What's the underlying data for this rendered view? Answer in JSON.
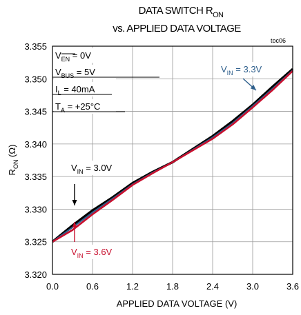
{
  "chart_data": {
    "type": "line",
    "title_line1_main": "DATA SWITCH R",
    "title_line1_sub": "ON",
    "title_line2": "vs. APPLIED DATA VOLTAGE",
    "tag": "toc06",
    "xlabel": "APPLIED DATA VOLTAGE (V)",
    "ylabel_main": "R",
    "ylabel_sub": "ON",
    "ylabel_unit": " (Ω)",
    "xlim": [
      0,
      3.6
    ],
    "ylim": [
      3.32,
      3.355
    ],
    "x_ticks": [
      "0.0",
      "0.6",
      "1.2",
      "1.8",
      "2.4",
      "3.0",
      "3.6"
    ],
    "y_ticks": [
      "3.320",
      "3.325",
      "3.330",
      "3.335",
      "3.340",
      "3.345",
      "3.350",
      "3.355"
    ],
    "grid": true,
    "conditions": [
      {
        "main": "V",
        "sub": "EN",
        "over": true,
        "rest": " = 0V"
      },
      {
        "main": "V",
        "sub": "BUS",
        "over": false,
        "rest": " = 5V"
      },
      {
        "main": "I",
        "sub": "L",
        "over": false,
        "rest": " = 40mA"
      },
      {
        "main": "T",
        "sub": "A",
        "over": false,
        "rest": " = +25°C"
      }
    ],
    "series": [
      {
        "label_main": "V",
        "label_sub": "IN",
        "label_rest": " = 3.0V",
        "color": "#000000",
        "x": [
          0.0,
          0.3,
          0.6,
          0.9,
          1.2,
          1.5,
          1.8,
          2.1,
          2.4,
          2.7,
          3.0,
          3.3,
          3.6
        ],
        "y": [
          3.325,
          3.3275,
          3.3298,
          3.3318,
          3.334,
          3.3357,
          3.3372,
          3.3392,
          3.3412,
          3.3435,
          3.346,
          3.3488,
          3.3515
        ]
      },
      {
        "label_main": "V",
        "label_sub": "IN",
        "label_rest": " = 3.3V",
        "color": "#2e5f8c",
        "x": [
          0.0,
          0.3,
          0.6,
          0.9,
          1.2,
          1.5,
          1.8,
          2.1,
          2.4,
          2.7,
          3.0,
          3.3,
          3.6
        ],
        "y": [
          3.325,
          3.3272,
          3.3295,
          3.3316,
          3.3338,
          3.3356,
          3.3372,
          3.3391,
          3.341,
          3.3432,
          3.3458,
          3.3485,
          3.3513
        ]
      },
      {
        "label_main": "V",
        "label_sub": "IN",
        "label_rest": " = 3.6V",
        "color": "#c8102e",
        "x": [
          0.0,
          0.3,
          0.6,
          0.9,
          1.2,
          1.5,
          1.8,
          2.1,
          2.4,
          2.7,
          3.0,
          3.3,
          3.6
        ],
        "y": [
          3.325,
          3.3268,
          3.3292,
          3.3314,
          3.3337,
          3.3355,
          3.3372,
          3.339,
          3.3408,
          3.343,
          3.3456,
          3.3483,
          3.3512
        ]
      }
    ]
  }
}
